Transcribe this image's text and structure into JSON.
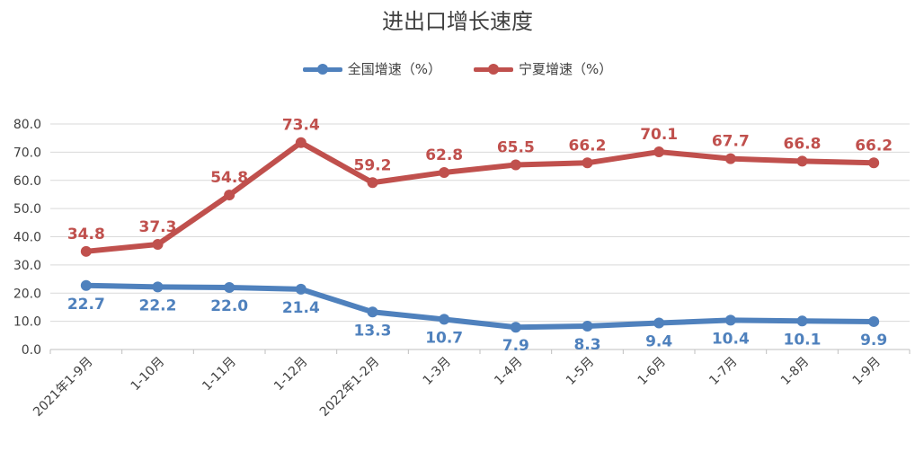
{
  "chart_data": {
    "type": "line",
    "title": "进出口增长速度",
    "categories": [
      "2021年1-9月",
      "1-10月",
      "1-11月",
      "1-12月",
      "2022年1-2月",
      "1-3月",
      "1-4月",
      "1-5月",
      "1-6月",
      "1-7月",
      "1-8月",
      "1-9月"
    ],
    "series": [
      {
        "name": "全国增速（%）",
        "color": "#4f81bd",
        "values": [
          22.7,
          22.2,
          22.0,
          21.4,
          13.3,
          10.7,
          7.9,
          8.3,
          9.4,
          10.4,
          10.1,
          9.9
        ],
        "labels": [
          "22.7",
          "22.2",
          "22.0",
          "21.4",
          "13.3",
          "10.7",
          "7.9",
          "8.3",
          "9.4",
          "10.4",
          "10.1",
          "9.9"
        ]
      },
      {
        "name": "宁夏增速（%）",
        "color": "#c0504d",
        "values": [
          34.8,
          37.3,
          54.8,
          73.4,
          59.2,
          62.8,
          65.5,
          66.2,
          70.1,
          67.7,
          66.8,
          66.2
        ],
        "labels": [
          "34.8",
          "37.3",
          "54.8",
          "73.4",
          "59.2",
          "62.8",
          "65.5",
          "66.2",
          "70.1",
          "67.7",
          "66.8",
          "66.2"
        ]
      }
    ],
    "ylim": [
      0,
      80
    ],
    "yticks": [
      "0.0",
      "10.0",
      "20.0",
      "30.0",
      "40.0",
      "50.0",
      "60.0",
      "70.0",
      "80.0"
    ],
    "grid": true,
    "legend": "top-center"
  }
}
